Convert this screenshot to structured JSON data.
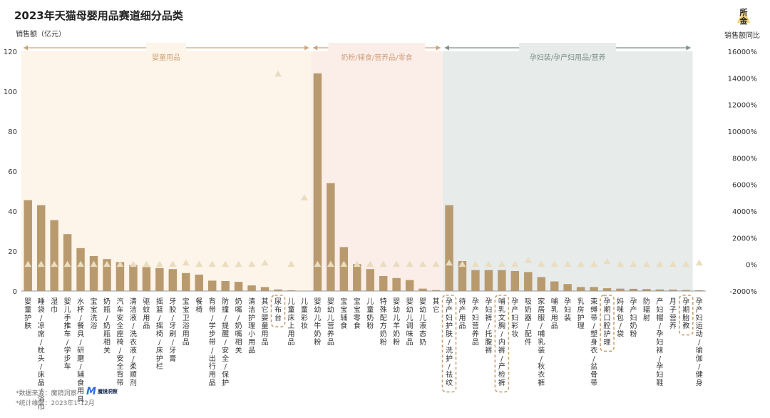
{
  "title": "2023年天猫母婴用品赛道细分品类",
  "left_axis_label": "销售额（亿元）",
  "right_axis_label": "销售额同比",
  "logo_text": "所\n金",
  "footnote_source": "*数据来源：魔镜洞察",
  "footnote_period": "*统计维度：2023年1-12月",
  "brand_name": "魔镜洞察",
  "brand_icon": "M",
  "colors": {
    "bar": "#b89a6e",
    "marker": "#eadcbf",
    "region1_bg": "#fdf4ea",
    "region2_bg": "#fbeee8",
    "region3_bg": "#e7ebe9",
    "region1_text": "#cfa678",
    "region2_text": "#cf9f7c",
    "region3_text": "#7a8f89",
    "highlight_box": "#c8a170"
  },
  "chart_data": {
    "type": "bar",
    "title": "2023年天猫母婴用品赛道细分品类",
    "ylabel": "销售额（亿元）",
    "y2label": "销售额同比",
    "ylim": [
      0,
      120
    ],
    "y2lim": [
      -2000,
      16000
    ],
    "yticks": [
      "0",
      "20",
      "40",
      "60",
      "80",
      "100",
      "120"
    ],
    "y2ticks": [
      "-2000%",
      "0%",
      "2000%",
      "4000%",
      "6000%",
      "8000%",
      "10000%",
      "12000%",
      "14000%",
      "16000%"
    ],
    "regions": [
      {
        "name": "婴童用品",
        "start": 0,
        "end": 21
      },
      {
        "name": "奶粉/辅食/营养品/零食",
        "start": 22,
        "end": 31
      },
      {
        "name": "孕妇装/孕产妇用品/营养",
        "start": 32,
        "end": 50
      }
    ],
    "highlight": [
      19,
      32,
      36,
      44,
      50
    ],
    "categories": [
      "婴童护肤",
      "睡袋/凉席/枕头/床品/浴巾",
      "湿巾",
      "婴儿手推车/学步车",
      "水杯/餐具/研磨/辅食用具",
      "宝宝洗浴",
      "奶瓶/奶瓶相关",
      "汽车安全座椅/安全背带",
      "清洁液/洗衣液/柔顺剂",
      "驱蚊用品",
      "摇篮/摇椅/床护栏",
      "牙胶/牙刷/牙膏",
      "宝宝卫浴用品",
      "餐椅",
      "背带/学步带/出行用品",
      "防撞/提醒/安全/保护",
      "奶嘴/奶嘴相关",
      "清洁护理小用品",
      "其它婴童用品",
      "尿布台",
      "儿童床上用品",
      "儿童彩妆",
      "婴幼儿牛奶粉",
      "婴幼儿营养品",
      "宝宝辅食",
      "宝宝零食",
      "儿童奶粉",
      "特殊配方奶粉",
      "婴幼儿羊奶粉",
      "婴幼儿调味品",
      "婴幼儿液态奶",
      "其它",
      "孕产妇护肤/洗护/祛纹",
      "待产用品",
      "孕产妇营养品",
      "孕妇裤/托腹裤",
      "哺乳文胸/内裤/产检裤",
      "孕产妇彩妆",
      "吸奶器/配件",
      "家居服/哺乳装/秋衣裤",
      "哺乳用品",
      "孕妇装",
      "乳房护理",
      "束缚带/塑身衣/盆骨带",
      "孕期口腔护理",
      "妈咪包/袋",
      "孕产妇奶粉",
      "防辐射",
      "产妇帽/孕妇袜/孕妇鞋",
      "月子营养",
      "孕期胎教",
      "孕产妇运动/瑜伽/健身"
    ],
    "values": [
      45.5,
      43,
      35.5,
      28.5,
      21.5,
      17.5,
      16,
      14.5,
      13,
      12,
      11.5,
      11,
      9,
      8.2,
      5.2,
      5,
      4.6,
      2.8,
      2,
      0.8,
      0.4,
      0.1,
      109,
      54,
      22,
      13.5,
      11,
      7.5,
      6.5,
      5.5,
      1.2,
      0.5,
      43,
      15,
      10.5,
      10.5,
      10.5,
      10,
      9.5,
      7,
      4.8,
      3.5,
      2,
      2,
      1.4,
      1.2,
      1.1,
      1,
      0.8,
      0.7,
      0.5,
      0.4
    ],
    "yoy": [
      0,
      0,
      0,
      0,
      0,
      0,
      0,
      0,
      0,
      0,
      0,
      0,
      100,
      0,
      0,
      0,
      0,
      0,
      100,
      14300,
      0,
      5000,
      0,
      0,
      0,
      0,
      0,
      0,
      0,
      0,
      0,
      0,
      100,
      0,
      0,
      0,
      0,
      0,
      300,
      0,
      0,
      0,
      0,
      0,
      200,
      0,
      0,
      0,
      0,
      0,
      0,
      100
    ]
  }
}
